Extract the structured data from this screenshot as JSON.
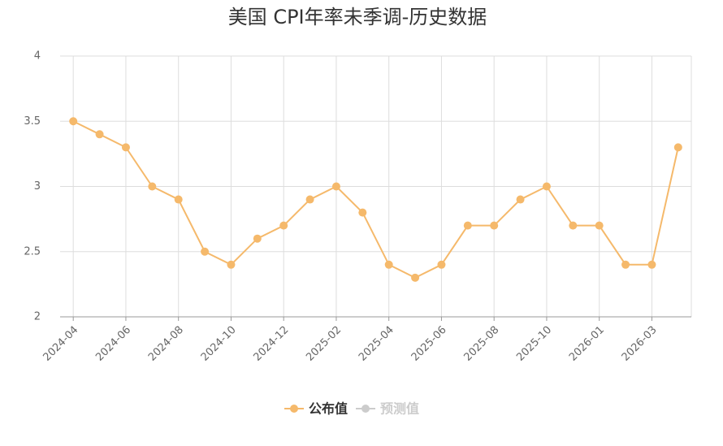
{
  "chart_data": {
    "type": "line",
    "title": "美国 CPI年率未季调-历史数据",
    "categories": [
      "2024-04",
      null,
      "2024-06",
      null,
      "2024-08",
      null,
      "2024-10",
      null,
      "2024-12",
      null,
      "2025-02",
      null,
      "2025-04",
      null,
      "2025-06",
      null,
      "2025-08",
      null,
      "2025-10",
      null,
      "2026-01",
      null,
      "2026-03",
      null
    ],
    "series": [
      {
        "name": "公布值",
        "color": "#f5b96b",
        "values": [
          3.5,
          3.4,
          3.3,
          3.0,
          2.9,
          2.5,
          2.4,
          2.6,
          2.7,
          2.9,
          3.0,
          2.8,
          2.4,
          2.3,
          2.4,
          2.7,
          2.7,
          2.9,
          3.0,
          2.7,
          2.7,
          2.4,
          2.4,
          3.3
        ]
      },
      {
        "name": "预测值",
        "color": "#cccccc",
        "values": [
          null,
          null,
          null,
          null,
          null,
          null,
          null,
          null,
          null,
          null,
          null,
          null,
          null,
          null,
          null,
          null,
          null,
          null,
          null,
          null,
          null,
          null,
          null,
          null
        ]
      }
    ],
    "ylim": [
      2,
      4
    ],
    "yticks": [
      2,
      2.5,
      3,
      3.5,
      4
    ],
    "grid": true
  }
}
